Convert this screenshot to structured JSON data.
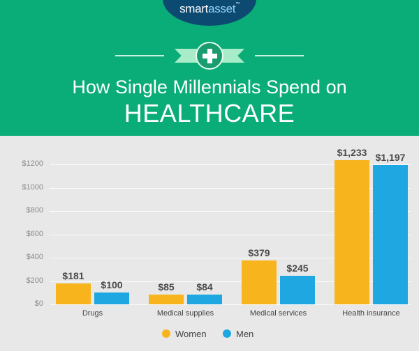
{
  "header": {
    "logo": {
      "part1": "smart",
      "part2": "asset",
      "tm": "™"
    },
    "icon": "plus-icon",
    "title_line1": "How Single Millennials Spend on",
    "title_line2": "HEALTHCARE",
    "colors": {
      "background": "#0aad77",
      "logo_oval": "#0d4a72"
    }
  },
  "chart_data": {
    "type": "bar",
    "title": "How Single Millennials Spend on HEALTHCARE",
    "xlabel": "",
    "ylabel": "",
    "categories": [
      "Drugs",
      "Medical supplies",
      "Medical services",
      "Health insurance"
    ],
    "series": [
      {
        "name": "Women",
        "color": "#f8b41c",
        "values": [
          181,
          85,
          379,
          1233
        ],
        "labels": [
          "$181",
          "$85",
          "$379",
          "$1,233"
        ]
      },
      {
        "name": "Men",
        "color": "#1fa7e1",
        "values": [
          100,
          84,
          245,
          1197
        ],
        "labels": [
          "$100",
          "$84",
          "$245",
          "$1,197"
        ]
      }
    ],
    "yticks": [
      "$0",
      "$200",
      "$400",
      "$600",
      "$800",
      "$1000",
      "$1200"
    ],
    "ylim": [
      0,
      1200
    ],
    "grid": true,
    "legend_position": "bottom"
  }
}
